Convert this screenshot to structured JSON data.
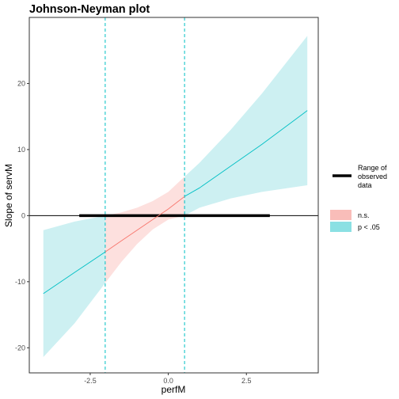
{
  "chart_data": {
    "type": "line",
    "title": "Johnson-Neyman plot",
    "xlabel": "perfM",
    "ylabel": "Slope of servM",
    "xlim": [
      -4.45,
      4.8
    ],
    "ylim": [
      -23.8,
      30.0
    ],
    "x_ticks": [
      -2.5,
      0.0,
      2.5
    ],
    "x_tick_labels": [
      "-2.5",
      "0.0",
      "2.5"
    ],
    "y_ticks": [
      -20,
      -10,
      0,
      10,
      20
    ],
    "y_tick_labels": [
      "-20",
      "-10",
      "0",
      "10",
      "20"
    ],
    "grid": false,
    "legend_position": "right",
    "legend": [
      {
        "key": "range",
        "label_lines": [
          "Range of",
          "observed",
          "data"
        ]
      },
      {
        "key": "ns",
        "label": "n.s."
      },
      {
        "key": "sig",
        "label": "p < .05"
      }
    ],
    "jn_bounds": [
      -2.02,
      0.52
    ],
    "observed_range": [
      -2.85,
      3.25
    ],
    "zero_line": 0,
    "series": [
      {
        "x": [
          -4.0,
          -3.0,
          -2.02,
          -1.5,
          -1.0,
          -0.5,
          0.0,
          0.52,
          1.0,
          2.0,
          3.0,
          4.45
        ],
        "y": [
          -11.8,
          -8.6,
          -5.5,
          -3.8,
          -2.2,
          -0.6,
          1.0,
          2.9,
          4.2,
          7.5,
          10.8,
          15.9
        ],
        "lower": [
          -21.4,
          -16.3,
          -10.2,
          -7.0,
          -4.3,
          -2.1,
          -0.6,
          0.0,
          1.2,
          2.6,
          3.6,
          4.6
        ],
        "upper": [
          -2.2,
          -0.9,
          0.0,
          0.5,
          1.2,
          2.2,
          3.6,
          5.9,
          8.0,
          13.0,
          18.5,
          27.2
        ]
      }
    ],
    "colors": {
      "sig_line": "#00BFC4",
      "sig_fill": "#cdf0f2",
      "ns_line": "#F8766D",
      "ns_fill": "#fde0de",
      "jn_line": "#00BFC4",
      "range_bar": "#000000",
      "axis": "#333333"
    }
  }
}
